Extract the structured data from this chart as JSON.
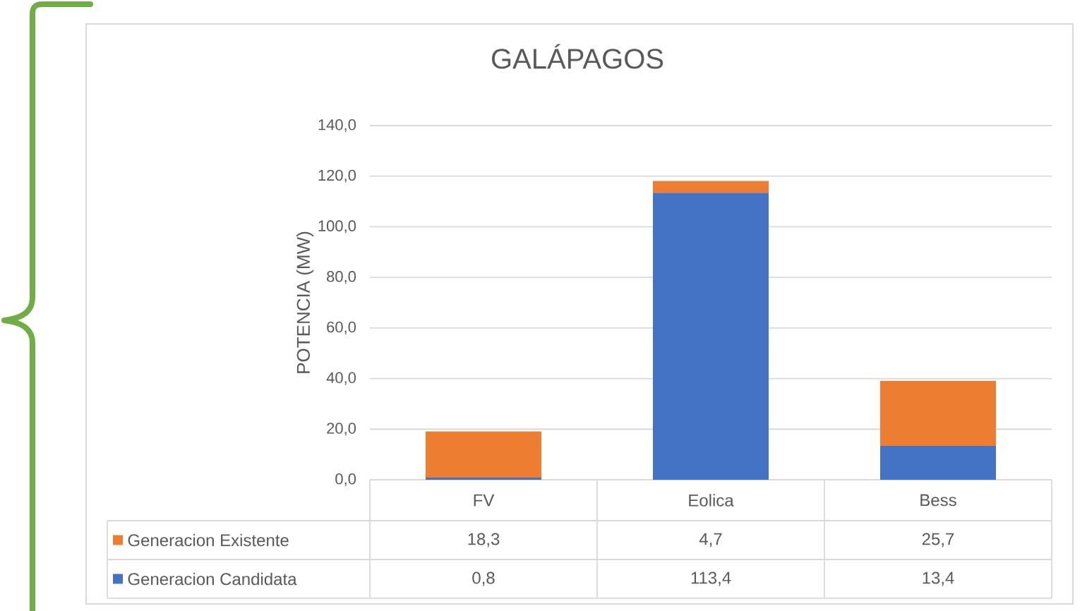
{
  "chart_data": {
    "type": "bar",
    "title": "GALÁPAGOS",
    "ylabel": "POTENCIA (MW)",
    "categories": [
      "FV",
      "Eolica",
      "Bess"
    ],
    "stacked": true,
    "series": [
      {
        "name": "Generacion Candidata",
        "color": "#4472c4",
        "values": [
          0.8,
          113.4,
          13.4
        ],
        "value_labels": [
          "0,8",
          "113,4",
          "13,4"
        ]
      },
      {
        "name": "Generacion Existente",
        "color": "#ed7d31",
        "values": [
          18.3,
          4.7,
          25.7
        ],
        "value_labels": [
          "18,3",
          "4,7",
          "25,7"
        ]
      }
    ],
    "ylim": [
      0,
      140
    ],
    "yticks": [
      {
        "value": 0,
        "label": "0,0"
      },
      {
        "value": 20,
        "label": "20,0"
      },
      {
        "value": 40,
        "label": "40,0"
      },
      {
        "value": 60,
        "label": "60,0"
      },
      {
        "value": 80,
        "label": "80,0"
      },
      {
        "value": 100,
        "label": "100,0"
      },
      {
        "value": 120,
        "label": "120,0"
      },
      {
        "value": 140,
        "label": "140,0"
      }
    ],
    "grid": "y",
    "legend": "bottom"
  }
}
